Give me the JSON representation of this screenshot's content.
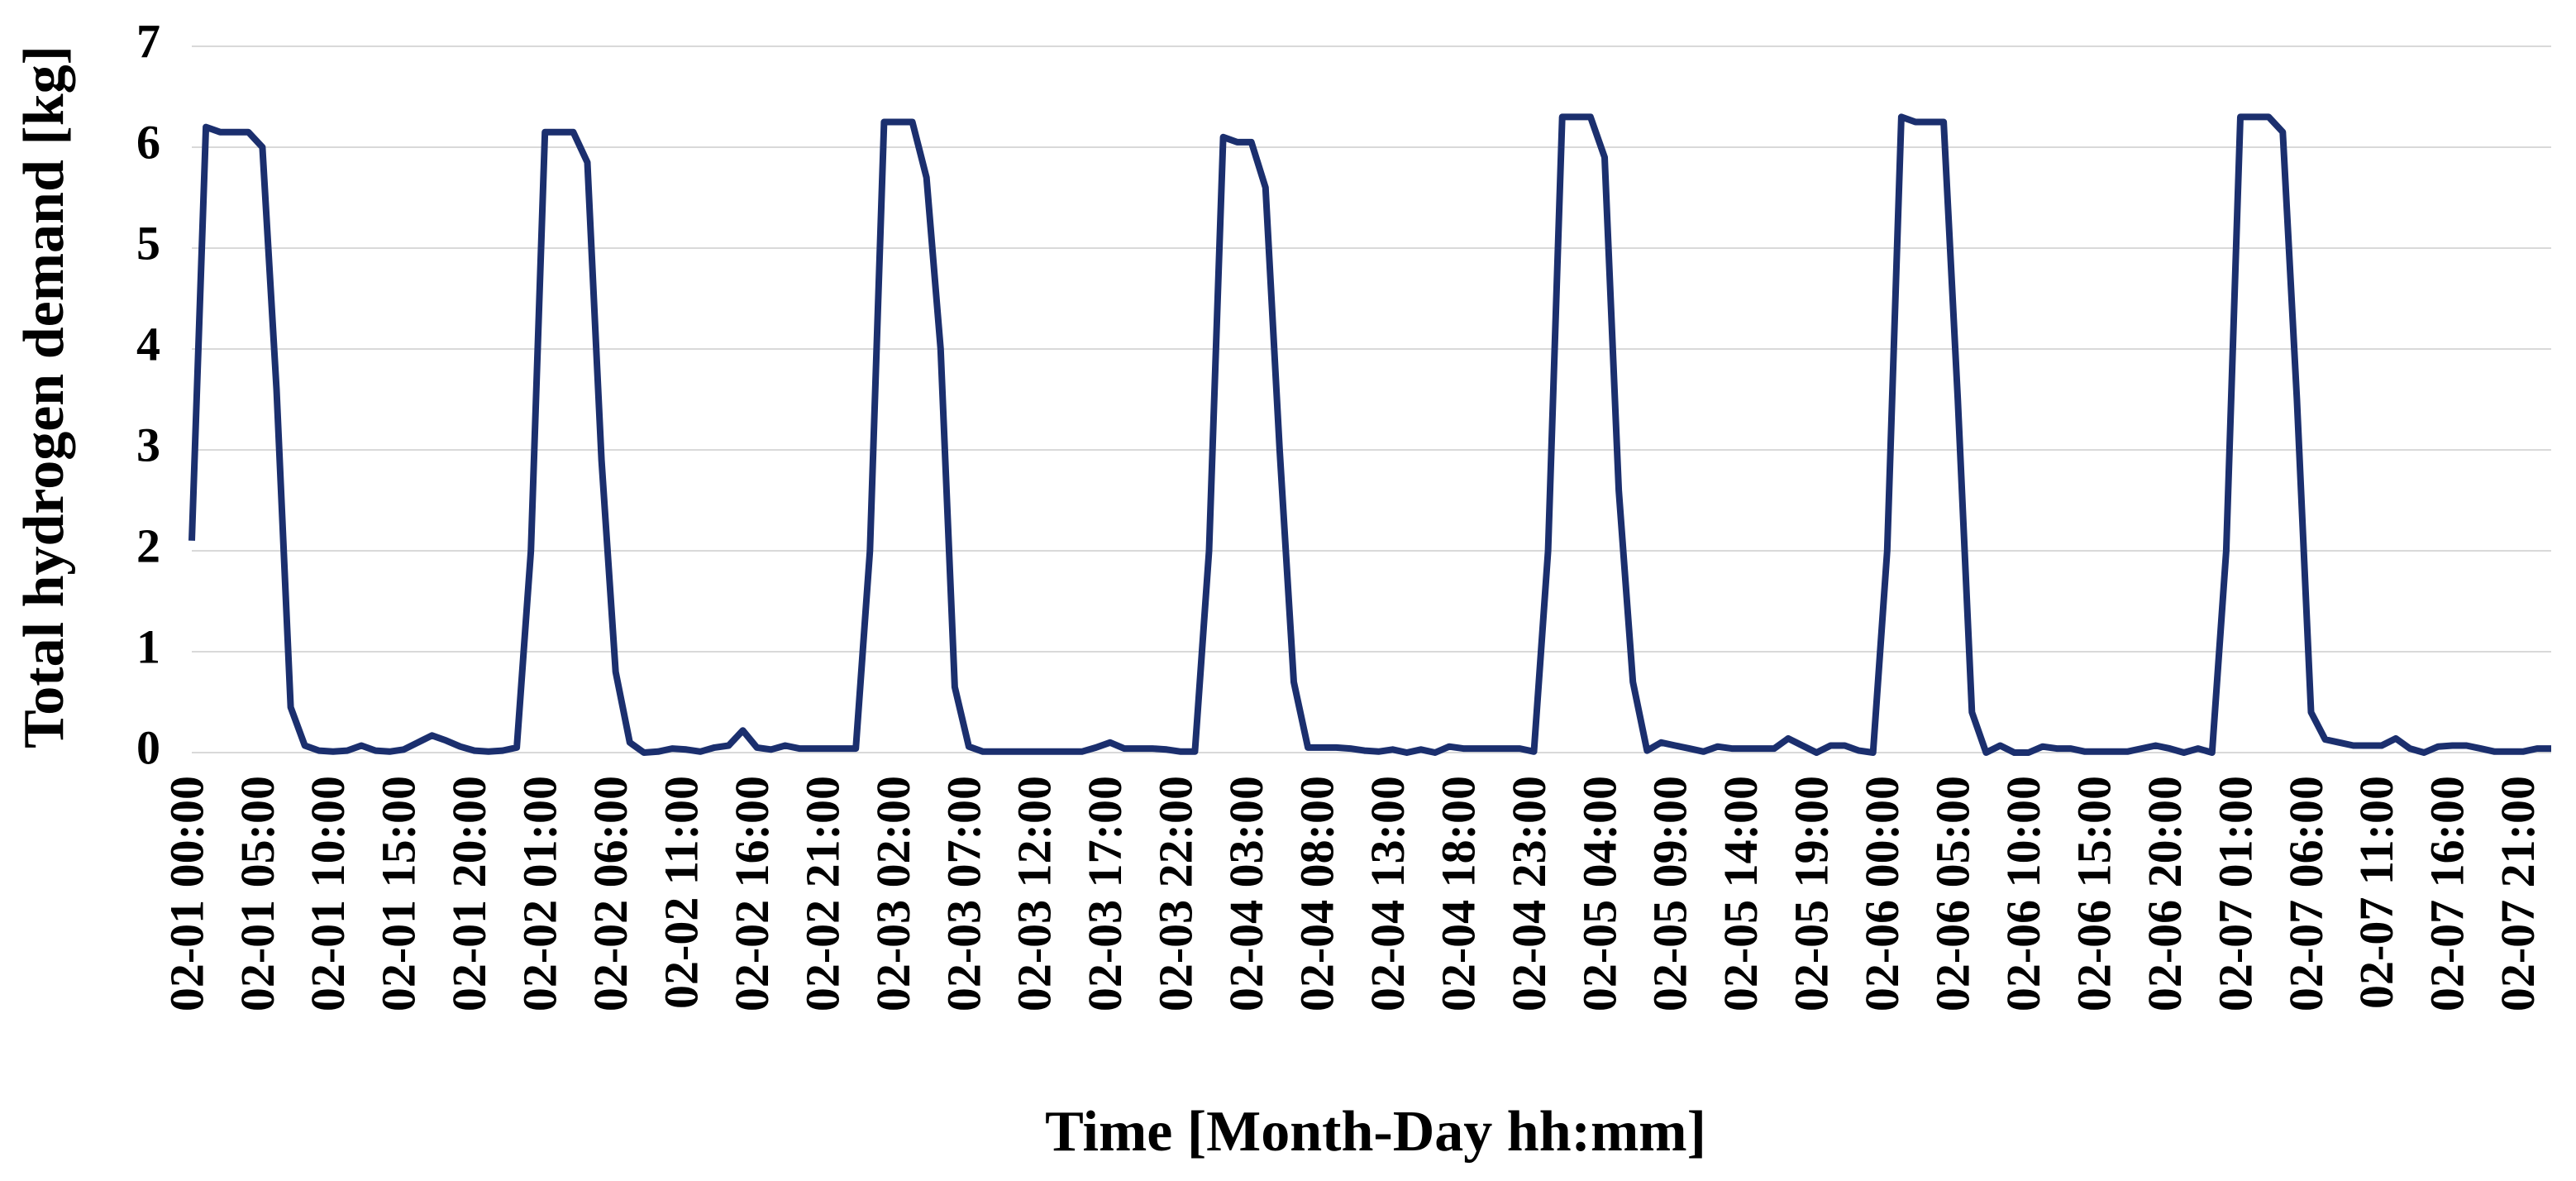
{
  "chart_data": {
    "type": "line",
    "x_label": "Time [Month-Day hh:mm]",
    "y_label": "Total hydrogen demand [kg]",
    "ylim": [
      0,
      7
    ],
    "yticks": [
      0,
      1,
      2,
      3,
      4,
      5,
      6,
      7
    ],
    "grid": true,
    "categories": [
      "02-01 00:00",
      null,
      null,
      null,
      null,
      "02-01 05:00",
      null,
      null,
      null,
      null,
      "02-01 10:00",
      null,
      null,
      null,
      null,
      "02-01 15:00",
      null,
      null,
      null,
      null,
      "02-01 20:00",
      null,
      null,
      null,
      null,
      "02-02 01:00",
      null,
      null,
      null,
      null,
      "02-02 06:00",
      null,
      null,
      null,
      null,
      "02-02 11:00",
      null,
      null,
      null,
      null,
      "02-02 16:00",
      null,
      null,
      null,
      null,
      "02-02 21:00",
      null,
      null,
      null,
      null,
      "02-03 02:00",
      null,
      null,
      null,
      null,
      "02-03 07:00",
      null,
      null,
      null,
      null,
      "02-03 12:00",
      null,
      null,
      null,
      null,
      "02-03 17:00",
      null,
      null,
      null,
      null,
      "02-03 22:00",
      null,
      null,
      null,
      null,
      "02-04 03:00",
      null,
      null,
      null,
      null,
      "02-04 08:00",
      null,
      null,
      null,
      null,
      "02-04 13:00",
      null,
      null,
      null,
      null,
      "02-04 18:00",
      null,
      null,
      null,
      null,
      "02-04 23:00",
      null,
      null,
      null,
      null,
      "02-05 04:00",
      null,
      null,
      null,
      null,
      "02-05 09:00",
      null,
      null,
      null,
      null,
      "02-05 14:00",
      null,
      null,
      null,
      null,
      "02-05 19:00",
      null,
      null,
      null,
      null,
      "02-06 00:00",
      null,
      null,
      null,
      null,
      "02-06 05:00",
      null,
      null,
      null,
      null,
      "02-06 10:00",
      null,
      null,
      null,
      null,
      "02-06 15:00",
      null,
      null,
      null,
      null,
      "02-06 20:00",
      null,
      null,
      null,
      null,
      "02-07 01:00",
      null,
      null,
      null,
      null,
      "02-07 06:00",
      null,
      null,
      null,
      null,
      "02-07 11:00",
      null,
      null,
      null,
      null,
      "02-07 16:00",
      null,
      null,
      null,
      null,
      "02-07 21:00",
      null,
      null
    ],
    "series": [
      {
        "name": "Total hydrogen demand",
        "color": "#1b2f6e",
        "values": [
          2.1,
          6.2,
          6.15,
          6.15,
          6.15,
          6.0,
          3.6,
          0.45,
          0.07,
          0.02,
          0.01,
          0.02,
          0.07,
          0.02,
          0.01,
          0.03,
          0.1,
          0.17,
          0.12,
          0.06,
          0.02,
          0.01,
          0.02,
          0.05,
          2.0,
          6.15,
          6.15,
          6.15,
          5.85,
          2.9,
          0.8,
          0.1,
          0.0,
          0.01,
          0.04,
          0.03,
          0.01,
          0.05,
          0.07,
          0.22,
          0.05,
          0.03,
          0.07,
          0.04,
          0.04,
          0.04,
          0.04,
          0.04,
          2.0,
          6.25,
          6.25,
          6.25,
          5.7,
          4.0,
          0.65,
          0.06,
          0.01,
          0.01,
          0.01,
          0.01,
          0.01,
          0.01,
          0.01,
          0.01,
          0.05,
          0.1,
          0.04,
          0.04,
          0.04,
          0.03,
          0.01,
          0.01,
          2.0,
          6.1,
          6.05,
          6.05,
          5.6,
          3.0,
          0.7,
          0.05,
          0.05,
          0.05,
          0.04,
          0.02,
          0.01,
          0.03,
          0.0,
          0.03,
          0.0,
          0.06,
          0.04,
          0.04,
          0.04,
          0.04,
          0.04,
          0.01,
          2.0,
          6.3,
          6.3,
          6.3,
          5.9,
          2.6,
          0.7,
          0.02,
          0.1,
          0.07,
          0.04,
          0.01,
          0.06,
          0.04,
          0.04,
          0.04,
          0.04,
          0.14,
          0.07,
          0.0,
          0.07,
          0.07,
          0.02,
          0.0,
          2.0,
          6.3,
          6.25,
          6.25,
          6.25,
          3.5,
          0.4,
          0.0,
          0.07,
          0.0,
          0.0,
          0.06,
          0.04,
          0.04,
          0.01,
          0.01,
          0.01,
          0.01,
          0.04,
          0.07,
          0.04,
          0.0,
          0.04,
          0.0,
          2.0,
          6.3,
          6.3,
          6.3,
          6.15,
          3.5,
          0.4,
          0.13,
          0.1,
          0.07,
          0.07,
          0.07,
          0.14,
          0.04,
          0.0,
          0.06,
          0.07,
          0.07,
          0.04,
          0.01,
          0.01,
          0.01,
          0.04,
          0.04
        ]
      }
    ]
  }
}
